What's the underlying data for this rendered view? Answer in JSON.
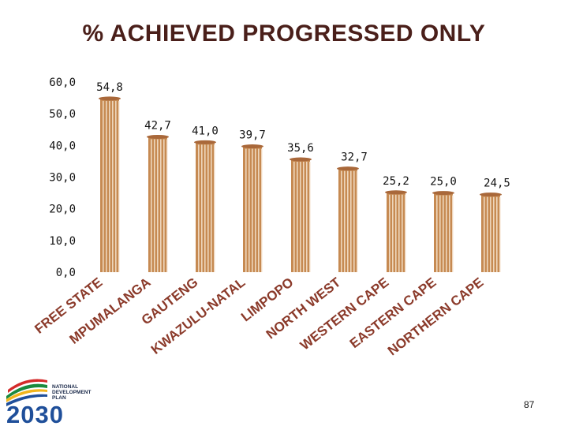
{
  "chart_data": {
    "type": "bar",
    "title": "% ACHIEVED PROGRESSED ONLY",
    "categories": [
      "FREE STATE",
      "MPUMALANGA",
      "GAUTENG",
      "KWAZULU-NATAL",
      "LIMPOPO",
      "NORTH WEST",
      "WESTERN CAPE",
      "EASTERN CAPE",
      "NORTHERN CAPE"
    ],
    "values": [
      54.8,
      42.7,
      41.0,
      39.7,
      35.6,
      32.7,
      25.2,
      25.0,
      24.5
    ],
    "value_labels": [
      "54,8",
      "42,7",
      "41,0",
      "39,7",
      "35,6",
      "32,7",
      "25,2",
      "25,0",
      "24,5"
    ],
    "yticks": [
      "0,0",
      "10,0",
      "20,0",
      "30,0",
      "40,0",
      "50,0",
      "60,0"
    ],
    "ylim": [
      0,
      60
    ],
    "xlabel": "",
    "ylabel": "",
    "grid": false,
    "legend": "none",
    "bar_color": "#c68a52",
    "bar_highlight_color": "#f4e3cf",
    "label_color": "#8b3a2a"
  },
  "logo": {
    "text_line1": "NATIONAL",
    "text_line2": "DEVELOPMENT",
    "text_line3": "PLAN",
    "year": "2030"
  },
  "page_number": "87"
}
